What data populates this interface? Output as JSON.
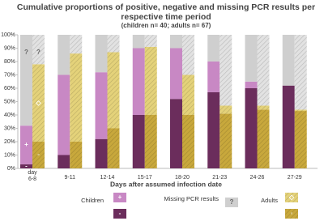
{
  "chart_data": {
    "type": "grouped-stacked-bar",
    "title": "Cumulative proportions of positive, negative and missing PCR results per",
    "title_line2": "respective time period",
    "subtitle": "(children n= 40; adults n= 67)",
    "x_label": "Days after assumed infection date",
    "missing_label": "Missing PCR results",
    "categories": [
      "day 6-8",
      "9-11",
      "12-14",
      "15-17",
      "18-20",
      "21-23",
      "24-26",
      "27-29"
    ],
    "ylim": [
      0,
      100
    ],
    "yticks": [
      {
        "value": 0,
        "label": "0%"
      },
      {
        "value": 10,
        "label": "10%"
      },
      {
        "value": 20,
        "label": "20%"
      },
      {
        "value": 30,
        "label": "30%"
      },
      {
        "value": 40,
        "label": "40%"
      },
      {
        "value": 50,
        "label": "50%"
      },
      {
        "value": 60,
        "label": "60%"
      },
      {
        "value": 70,
        "label": "70%"
      },
      {
        "value": 80,
        "label": "80%"
      },
      {
        "value": 90,
        "label": "90%"
      },
      {
        "value": 100,
        "label": "100%"
      }
    ],
    "groups": [
      {
        "name": "Children",
        "hatch": false,
        "segments": [
          {
            "name": "-",
            "color": "#6b2d5c",
            "values": [
              3,
              10,
              22,
              40,
              52,
              57,
              60,
              62
            ]
          },
          {
            "name": "+",
            "color": "#c888c4",
            "values": [
              29,
              60,
              50,
              50,
              38,
              23,
              5,
              0
            ]
          },
          {
            "name": "?",
            "color": "#cfcfcf",
            "values": [
              68,
              30,
              28,
              10,
              10,
              20,
              35,
              38
            ]
          }
        ]
      },
      {
        "name": "Adults",
        "hatch": true,
        "segments": [
          {
            "name": "◦",
            "color": "#c8a83c",
            "values": [
              20,
              20,
              30,
              40,
              40,
              41,
              44,
              43
            ]
          },
          {
            "name": "◇",
            "color": "#e4d27a",
            "values": [
              58,
              66,
              57,
              51,
              30,
              6,
              3,
              1
            ]
          },
          {
            "name": "?",
            "color": "#e2e2e2",
            "values": [
              22,
              14,
              13,
              9,
              30,
              53,
              53,
              56
            ]
          }
        ]
      }
    ]
  }
}
